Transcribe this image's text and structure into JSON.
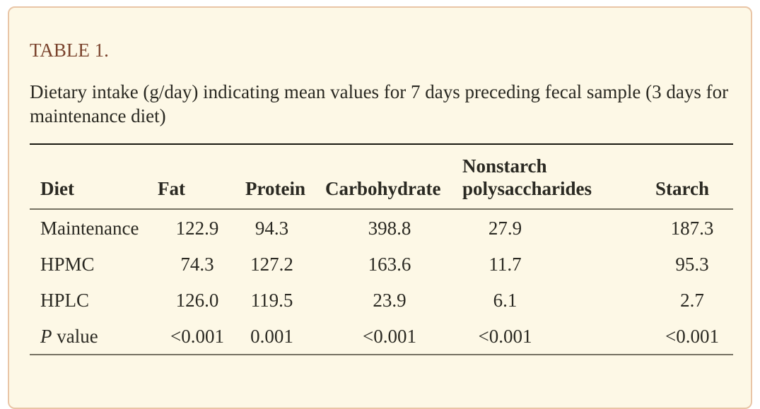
{
  "table_label": "TABLE 1.",
  "caption": "Dietary intake (g/day) indicating mean values for 7 days preceding fecal sample (3 days for maintenance diet)",
  "table": {
    "columns": [
      "Diet",
      "Fat",
      "Protein",
      "Carbohydrate",
      "Nonstarch polysaccharides",
      "Starch"
    ],
    "rows": [
      {
        "label": "Maintenance",
        "values": [
          "122.9",
          "94.3",
          "398.8",
          "27.9",
          "187.3"
        ]
      },
      {
        "label": "HPMC",
        "values": [
          "74.3",
          "127.2",
          "163.6",
          "11.7",
          "95.3"
        ]
      },
      {
        "label": "HPLC",
        "values": [
          "126.0",
          "119.5",
          "23.9",
          "6.1",
          "2.7"
        ]
      },
      {
        "label_italic": "P",
        "label_rest": " value",
        "values": [
          "<0.001",
          "0.001",
          "<0.001",
          "<0.001",
          "<0.001"
        ]
      }
    ]
  },
  "colors": {
    "page_background": "#ffffff",
    "card_background": "#fdf8e6",
    "card_border": "#e9c5a6",
    "heading_text": "#7a432d",
    "body_text": "#2a2922",
    "table_top_rule": "#191811",
    "table_gray_rule": "#767263"
  }
}
